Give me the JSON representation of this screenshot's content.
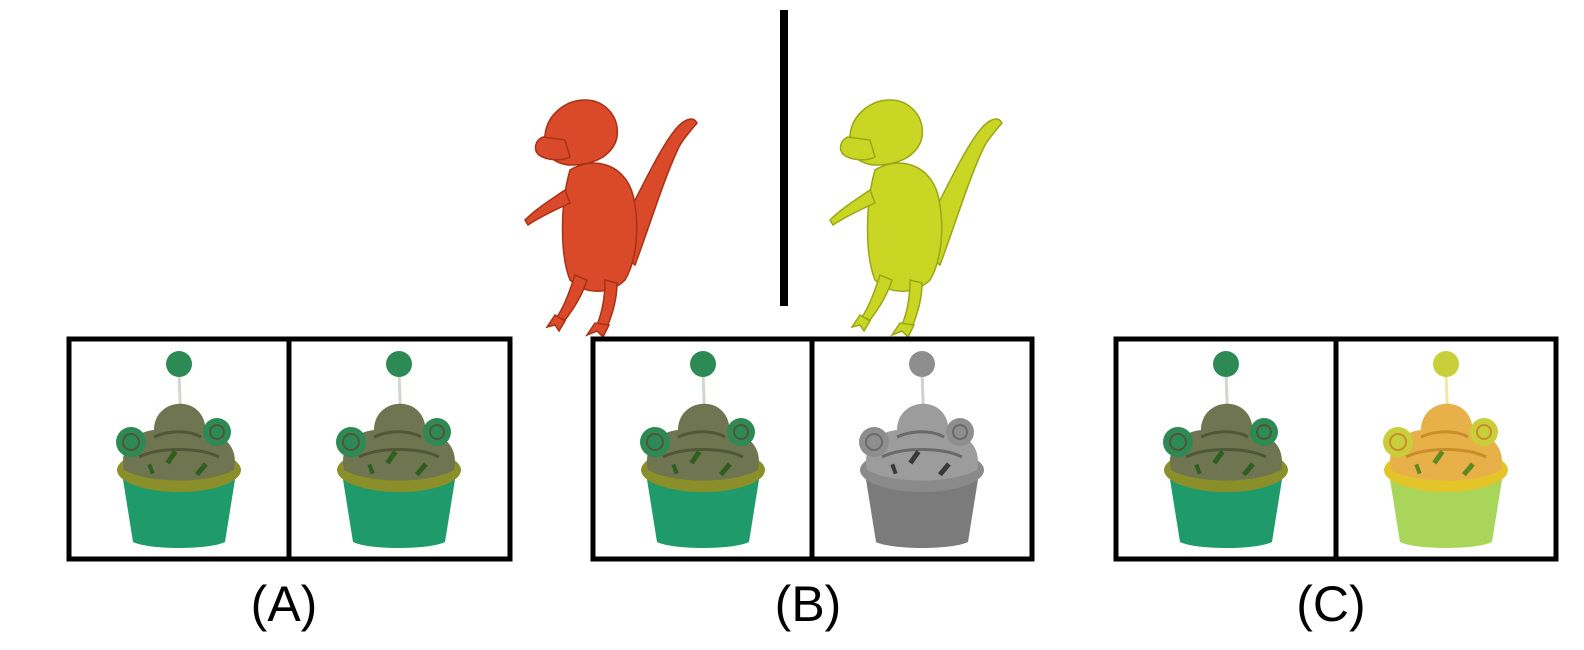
{
  "reference": {
    "source_icon": "dinosaur-red-icon",
    "target_icon": "dinosaur-yellow-icon",
    "source_color": "#d9492a",
    "target_color": "#c9d624"
  },
  "options": [
    {
      "label": "(A)",
      "left_icon": "cupcake-green-icon",
      "right_icon": "cupcake-green-icon",
      "right_style": "green"
    },
    {
      "label": "(B)",
      "left_icon": "cupcake-green-icon",
      "right_icon": "cupcake-gray-icon",
      "right_style": "gray"
    },
    {
      "label": "(C)",
      "left_icon": "cupcake-green-icon",
      "right_icon": "cupcake-yellow-icon",
      "right_style": "yellow"
    }
  ],
  "colors": {
    "frame": "#000000",
    "background": "#ffffff"
  }
}
